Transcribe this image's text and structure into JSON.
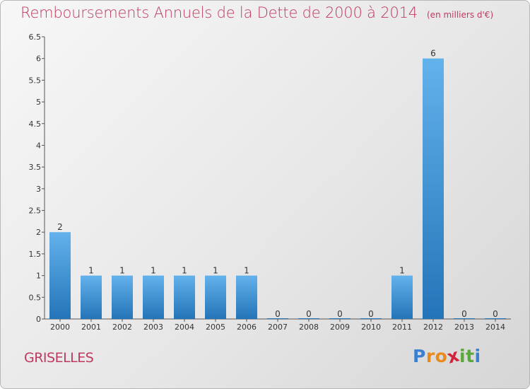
{
  "chart_data": {
    "type": "bar",
    "title": "Remboursements Annuels de la Dette de 2000 à 2014",
    "unit": "(en milliers d'€)",
    "xlabel": "",
    "ylabel": "",
    "categories": [
      "2000",
      "2001",
      "2002",
      "2003",
      "2004",
      "2005",
      "2006",
      "2007",
      "2008",
      "2009",
      "2010",
      "2011",
      "2012",
      "2013",
      "2014"
    ],
    "values": [
      2,
      1,
      1,
      1,
      1,
      1,
      1,
      0,
      0,
      0,
      0,
      1,
      6,
      0,
      0
    ],
    "data_labels": [
      "2",
      "1",
      "1",
      "1",
      "1",
      "1",
      "1",
      "0",
      "0",
      "0",
      "0",
      "1",
      "6",
      "0",
      "0"
    ],
    "ylim": [
      0,
      6.5
    ],
    "yticks": [
      0,
      0.5,
      1,
      1.5,
      2,
      2.5,
      3,
      3.5,
      4,
      4.5,
      5,
      5.5,
      6,
      6.5
    ],
    "ytick_labels": [
      "0",
      "0.5",
      "1",
      "1.5",
      "2",
      "2.5",
      "3",
      "3.5",
      "4",
      "4.5",
      "5",
      "5.5",
      "6",
      "6.5"
    ],
    "grid": false,
    "legend": "none",
    "bar_color": "#3a8fd6"
  },
  "commune": "GRISELLES",
  "brand": {
    "letters": [
      "P",
      "r",
      "o",
      "x",
      "i",
      "t",
      "i"
    ],
    "colors": [
      "#3a7fd0",
      "#e98a1f",
      "#e98a1f",
      "#d2233a",
      "#5aa83a",
      "#5aa83a",
      "#3a7fd0"
    ]
  },
  "colors": {
    "title": "#c0395f",
    "axis": "#555555"
  }
}
